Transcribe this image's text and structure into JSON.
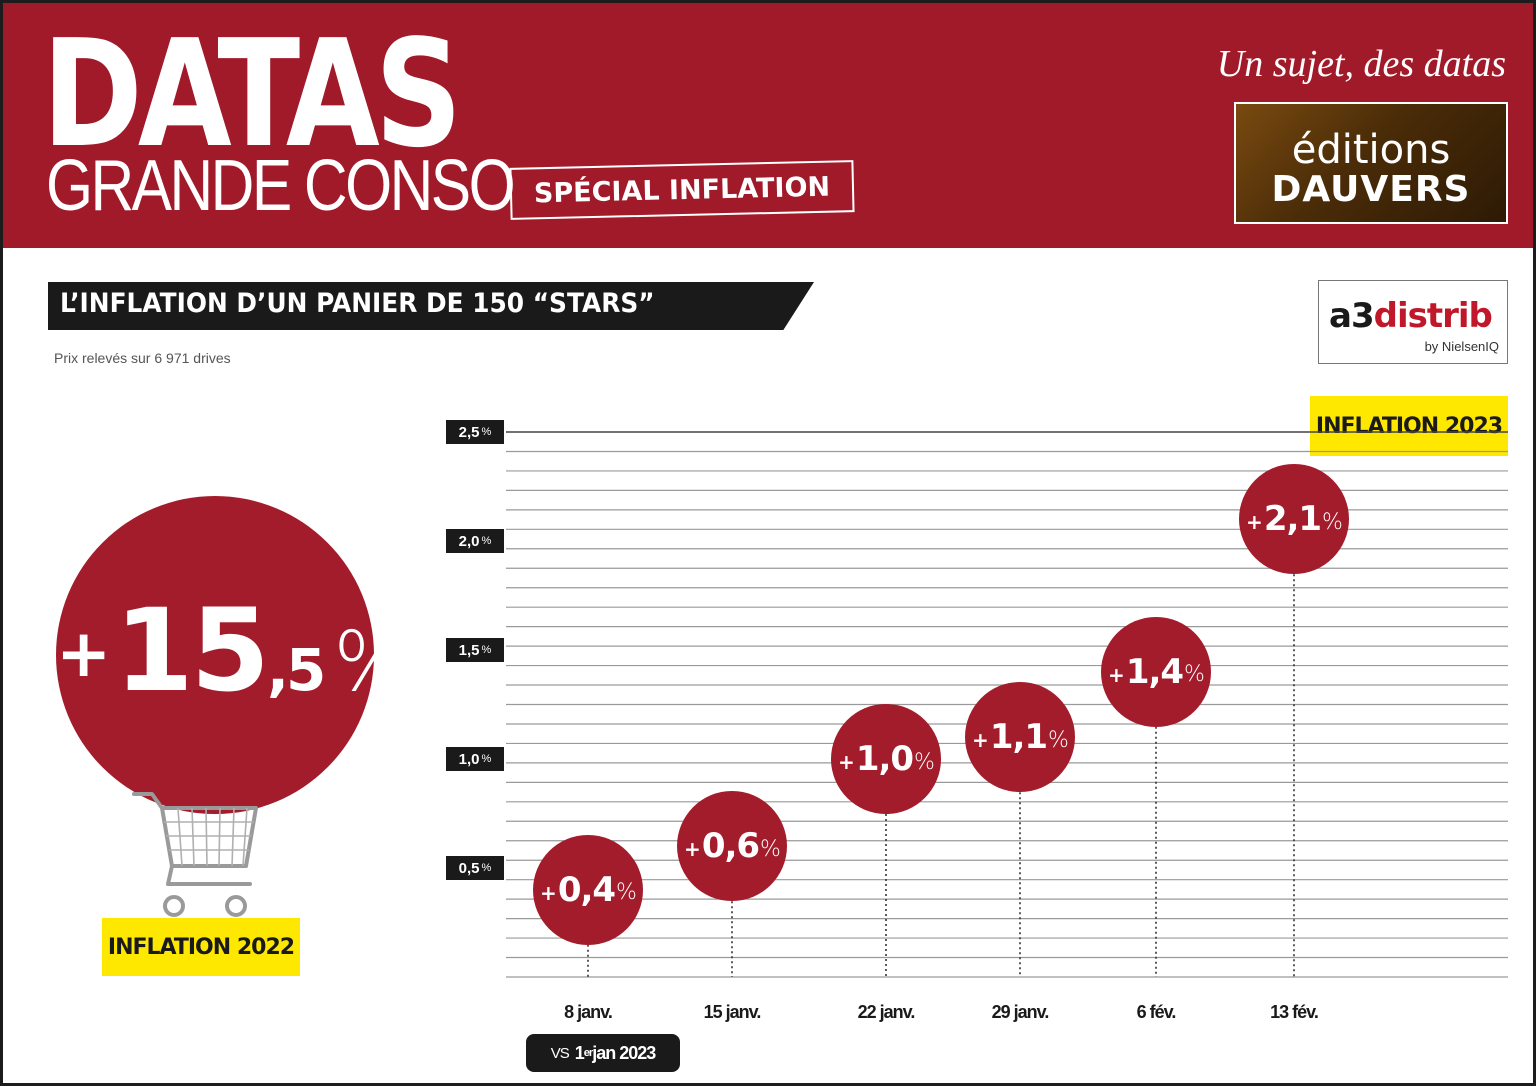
{
  "header": {
    "brand": "DATAS",
    "brand_sub": "GRANDE CONSO",
    "special": "SPÉCIAL INFLATION",
    "tagline": "Un sujet, des datas",
    "publisher_line1": "éditions",
    "publisher_line2": "DAUVERS"
  },
  "section": {
    "title": "L’INFLATION D’UN PANIER DE 150 “STARS”",
    "source_note": "Prix relevés sur 6 971 drives"
  },
  "data_logo": {
    "name_a": "a3",
    "name_b": "distrib",
    "byline": "by NielsenIQ"
  },
  "inflation_2022": {
    "plus": "+",
    "int": "15",
    "dec": ",5",
    "pct": "%",
    "label": "INFLATION 2022"
  },
  "inflation_2023_label": "INFLATION 2023",
  "baseline_badge": {
    "vs": "VS",
    "date": "1",
    "sup": "er",
    "rest": " jan 2023"
  },
  "colors": {
    "accent": "#a31c2c",
    "highlight": "#ffe800",
    "dark": "#1a1a1a"
  },
  "chart_data": {
    "type": "scatter",
    "title": "L’INFLATION D’UN PANIER DE 150 “STARS”",
    "categories": [
      "8 janv.",
      "15 janv.",
      "22 janv.",
      "29 janv.",
      "6 fév.",
      "13 fév."
    ],
    "series": [
      {
        "name": "INFLATION 2023",
        "values": [
          0.4,
          0.6,
          1.0,
          1.1,
          1.4,
          2.1
        ]
      }
    ],
    "value_labels": [
      "0,4",
      "0,6",
      "1,0",
      "1,1",
      "1,4",
      "2,1"
    ],
    "yticks": [
      "0,5",
      "1,0",
      "1,5",
      "2,0",
      "2,5"
    ],
    "ytick_values": [
      0.5,
      1.0,
      1.5,
      2.0,
      2.5
    ],
    "y_unit": "%",
    "ylim": [
      0,
      2.5
    ],
    "grid": true
  }
}
